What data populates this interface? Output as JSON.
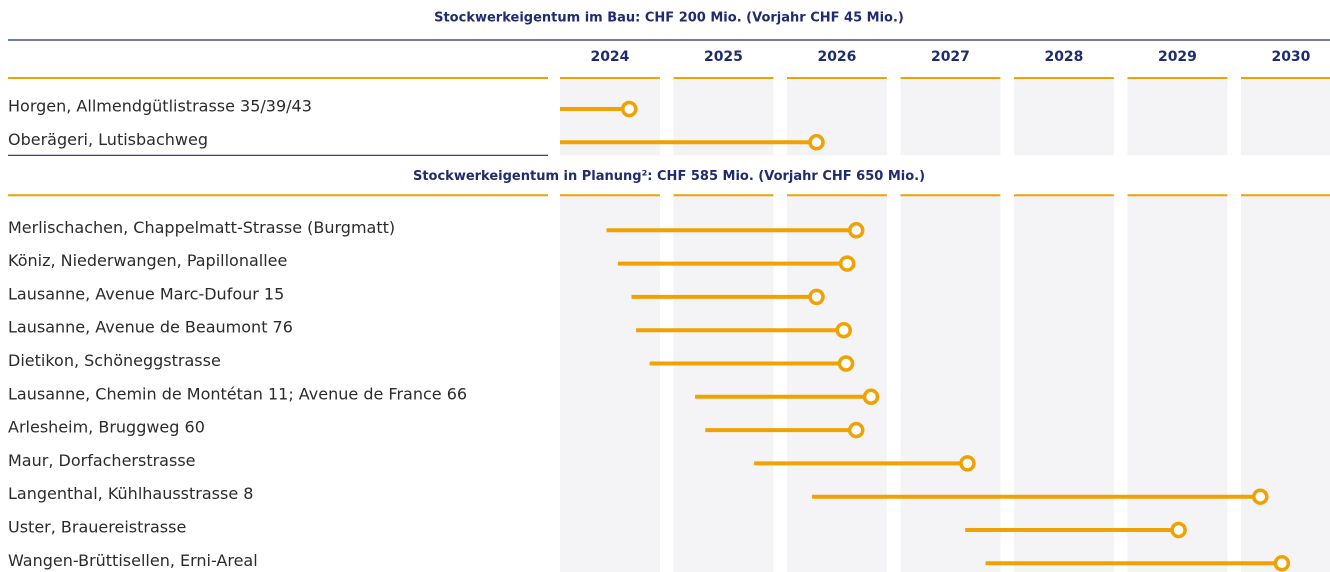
{
  "chart_data": {
    "type": "gantt",
    "xlim": [
      2024,
      2031
    ],
    "xticks": [
      2024,
      2025,
      2026,
      2027,
      2028,
      2029,
      2030
    ],
    "color": "#f0a202",
    "groups": [
      {
        "title": "Stockwerkeigentum im Bau: CHF 200 Mio. (Vorjahr CHF 45 Mio.)",
        "categories": [
          "Horgen, Allmendgütlistrasse 35/39/43",
          "Oberägeri, Lutisbachweg"
        ],
        "start": [
          2024,
          2024
        ],
        "end": [
          2024.61,
          2026.26
        ]
      },
      {
        "title": "Stockwerkeigentum in Planung²: CHF 585 Mio. (Vorjahr CHF 650 Mio.)",
        "categories": [
          "Merlischachen, Chappelmatt-Strasse (Burgmatt)",
          "Köniz, Niederwangen, Papillonallee",
          "Lausanne, Avenue Marc-Dufour 15",
          "Lausanne, Avenue de Beaumont 76",
          "Dietikon, Schöneggstrasse",
          "Lausanne, Chemin de Montétan 11; Avenue de France 66",
          "Arlesheim, Bruggweg 60",
          "Maur, Dorfacherstrasse",
          "Langenthal, Kühlhausstrasse 8",
          "Uster, Brauereistrasse",
          "Wangen-Brüttisellen, Erni-Areal"
        ],
        "start": [
          2024.41,
          2024.51,
          2024.63,
          2024.67,
          2024.79,
          2025.19,
          2025.28,
          2025.71,
          2026.22,
          2027.57,
          2027.75
        ],
        "end": [
          2026.61,
          2026.53,
          2026.26,
          2026.5,
          2026.52,
          2026.74,
          2026.61,
          2027.59,
          2030.17,
          2029.45,
          2030.36
        ]
      }
    ]
  }
}
